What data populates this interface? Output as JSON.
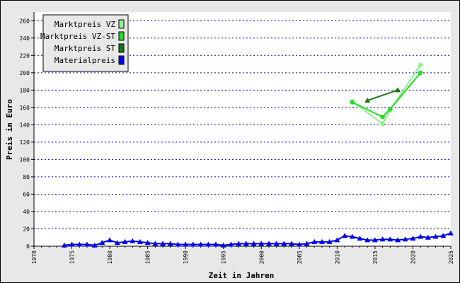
{
  "chart_data": {
    "type": "line",
    "xlabel": "Zeit in Jahren",
    "ylabel": "Preis in Euro",
    "xlim": [
      1970,
      2025
    ],
    "ylim": [
      0,
      270
    ],
    "x_ticks": [
      1970,
      1975,
      1980,
      1985,
      1990,
      1995,
      2000,
      2005,
      2010,
      2015,
      2020,
      2025
    ],
    "y_ticks": [
      0,
      20,
      40,
      60,
      80,
      100,
      120,
      140,
      160,
      180,
      200,
      220,
      240,
      260
    ],
    "grid": "horizontal dotted",
    "legend_position": "top-left",
    "series": [
      {
        "name": "Marktpreis VZ",
        "color": "#90ee90",
        "marker": "diamond",
        "x": [
          2012,
          2016,
          2017,
          2021
        ],
        "y": [
          167,
          141,
          157,
          209
        ]
      },
      {
        "name": "Marktpreis VZ-ST",
        "color": "#22dd22",
        "marker": "circle",
        "x": [
          2012,
          2016,
          2017,
          2021
        ],
        "y": [
          166,
          149,
          158,
          200
        ]
      },
      {
        "name": "Marktpreis ST",
        "color": "#157815",
        "marker": "triangle",
        "x": [
          2014,
          2018
        ],
        "y": [
          168,
          180
        ]
      },
      {
        "name": "Materialpreis",
        "color": "#0000ee",
        "marker": "triangle",
        "x": [
          1974,
          1975,
          1976,
          1977,
          1978,
          1979,
          1980,
          1981,
          1982,
          1983,
          1984,
          1985,
          1986,
          1987,
          1988,
          1989,
          1990,
          1991,
          1992,
          1993,
          1994,
          1995,
          1996,
          1997,
          1998,
          1999,
          2000,
          2001,
          2002,
          2003,
          2004,
          2005,
          2006,
          2007,
          2008,
          2009,
          2010,
          2011,
          2012,
          2013,
          2014,
          2015,
          2016,
          2017,
          2018,
          2019,
          2020,
          2021,
          2022,
          2023,
          2024,
          2025
        ],
        "y": [
          1,
          2,
          2,
          2,
          1,
          4,
          7,
          4,
          5,
          6,
          5,
          4,
          3,
          3,
          3,
          2,
          2,
          2,
          2,
          2,
          2,
          1,
          2,
          3,
          3,
          3,
          3,
          3,
          3,
          3,
          3,
          2,
          3,
          5,
          5,
          5,
          7,
          12,
          11,
          9,
          7,
          7,
          8,
          8,
          7,
          8,
          9,
          11,
          10,
          11,
          12,
          15
        ]
      }
    ]
  }
}
